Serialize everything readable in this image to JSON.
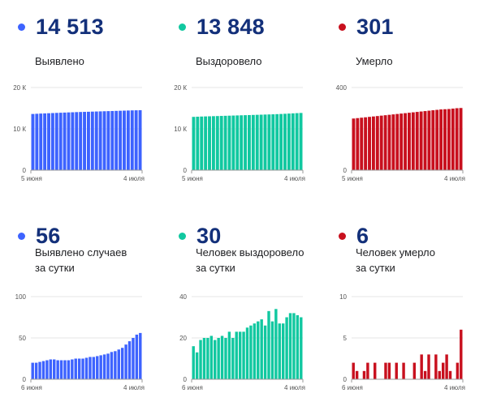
{
  "panels": [
    {
      "id": "p1",
      "value": "14 513",
      "label_lines": [
        "Выявлено"
      ],
      "color": "#3d63ff"
    },
    {
      "id": "p2",
      "value": "13 848",
      "label_lines": [
        "Выздоровело"
      ],
      "color": "#11c8a0"
    },
    {
      "id": "p3",
      "value": "301",
      "label_lines": [
        "Умерло"
      ],
      "color": "#c8101e"
    },
    {
      "id": "p4",
      "value": "56",
      "label_lines": [
        "Выявлено случаев",
        "за сутки"
      ],
      "color": "#3d63ff"
    },
    {
      "id": "p5",
      "value": "30",
      "label_lines": [
        "Человек выздоровело",
        "за сутки"
      ],
      "color": "#11c8a0"
    },
    {
      "id": "p6",
      "value": "6",
      "label_lines": [
        "Человек умерло",
        "за сутки"
      ],
      "color": "#c8101e"
    }
  ],
  "chart_data": [
    {
      "type": "bar",
      "color": "#3d63ff",
      "yticks": [
        "0",
        "10 К",
        "20 К"
      ],
      "ylim": [
        0,
        20000
      ],
      "x_start": "5 июня",
      "x_end": "4 июля",
      "values": [
        13600,
        13650,
        13700,
        13740,
        13780,
        13820,
        13860,
        13900,
        13940,
        13980,
        14010,
        14050,
        14080,
        14110,
        14140,
        14170,
        14200,
        14230,
        14260,
        14290,
        14320,
        14350,
        14380,
        14410,
        14440,
        14470,
        14490,
        14513
      ]
    },
    {
      "type": "bar",
      "color": "#11c8a0",
      "yticks": [
        "0",
        "10 К",
        "20 К"
      ],
      "ylim": [
        0,
        20000
      ],
      "x_start": "5 июня",
      "x_end": "4 июля",
      "values": [
        12900,
        12940,
        12980,
        13010,
        13040,
        13070,
        13100,
        13130,
        13160,
        13190,
        13220,
        13250,
        13280,
        13310,
        13340,
        13370,
        13400,
        13430,
        13460,
        13490,
        13520,
        13560,
        13600,
        13650,
        13700,
        13750,
        13800,
        13848
      ]
    },
    {
      "type": "bar",
      "color": "#c8101e",
      "yticks": [
        "0",
        "",
        "400"
      ],
      "ylim": [
        0,
        400
      ],
      "x_start": "5 июня",
      "x_end": "4 июля",
      "values": [
        250,
        252,
        254,
        256,
        258,
        260,
        262,
        264,
        266,
        268,
        270,
        272,
        274,
        276,
        278,
        280,
        282,
        284,
        286,
        288,
        290,
        292,
        294,
        295,
        296,
        298,
        300,
        301
      ]
    },
    {
      "type": "bar",
      "color": "#3d63ff",
      "yticks": [
        "0",
        "50",
        "100"
      ],
      "ylim": [
        0,
        100
      ],
      "x_start": "6 июня",
      "x_end": "4 июля",
      "values": [
        20,
        20,
        21,
        22,
        23,
        24,
        24,
        23,
        23,
        23,
        23,
        24,
        25,
        25,
        25,
        26,
        27,
        27,
        28,
        29,
        30,
        31,
        33,
        34,
        36,
        38,
        42,
        46,
        50,
        54,
        56
      ]
    },
    {
      "type": "bar",
      "color": "#11c8a0",
      "yticks": [
        "0",
        "20",
        "40"
      ],
      "ylim": [
        0,
        40
      ],
      "x_start": "6 июня",
      "x_end": "4 июля",
      "values": [
        16,
        13,
        19,
        20,
        20,
        21,
        19,
        20,
        21,
        20,
        23,
        20,
        23,
        23,
        23,
        25,
        26,
        27,
        28,
        29,
        26,
        33,
        28,
        34,
        27,
        27,
        30,
        32,
        32,
        31,
        30
      ]
    },
    {
      "type": "bar",
      "color": "#c8101e",
      "yticks": [
        "0",
        "5",
        "10"
      ],
      "ylim": [
        0,
        10
      ],
      "x_start": "6 июня",
      "x_end": "4 июля",
      "values": [
        2,
        1,
        0,
        1,
        2,
        0,
        2,
        0,
        0,
        2,
        2,
        0,
        2,
        0,
        2,
        0,
        0,
        2,
        0,
        3,
        1,
        3,
        0,
        3,
        1,
        2,
        3,
        1,
        0,
        2,
        6
      ]
    }
  ]
}
